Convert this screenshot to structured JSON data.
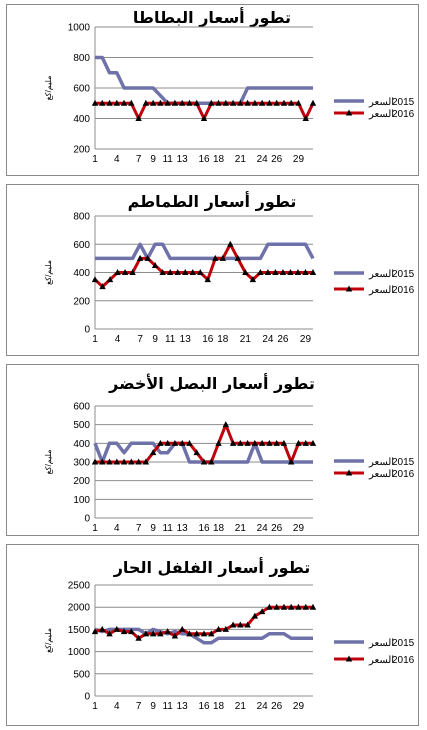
{
  "chart_data": [
    {
      "type": "line",
      "title": "تطور أسعار البطاطا",
      "ylabel": "مليم/كغ",
      "ylim": [
        200,
        1000
      ],
      "yticks": [
        200,
        400,
        600,
        800,
        1000
      ],
      "x": [
        1,
        2,
        3,
        4,
        5,
        6,
        7,
        8,
        9,
        10,
        11,
        12,
        13,
        14,
        15,
        16,
        17,
        18,
        19,
        20,
        21,
        22,
        23,
        24,
        25,
        26,
        27,
        28,
        29,
        30,
        31
      ],
      "xticks": [
        1,
        4,
        7,
        9,
        11,
        13,
        16,
        18,
        21,
        24,
        26,
        29
      ],
      "series": [
        {
          "name": "السعر 2015",
          "year": "2015",
          "label": "السعر",
          "color": "#6f72a8",
          "marker": "none",
          "values": [
            800,
            800,
            700,
            700,
            600,
            600,
            600,
            600,
            600,
            550,
            500,
            500,
            500,
            500,
            500,
            500,
            500,
            500,
            500,
            500,
            500,
            600,
            600,
            600,
            600,
            600,
            600,
            600,
            600,
            600,
            600
          ]
        },
        {
          "name": "السعر 2016",
          "year": "2016",
          "label": "السعر",
          "color": "#c0000a",
          "marker": "triangle",
          "values": [
            500,
            500,
            500,
            500,
            500,
            500,
            400,
            500,
            500,
            500,
            500,
            500,
            500,
            500,
            500,
            400,
            500,
            500,
            500,
            500,
            500,
            500,
            500,
            500,
            500,
            500,
            500,
            500,
            500,
            400,
            500
          ]
        }
      ],
      "grid": "horizontal",
      "legend": "right"
    },
    {
      "type": "line",
      "title": "تطور أسعار الطماطم",
      "ylabel": "مليم/كغ",
      "ylim": [
        0,
        800
      ],
      "yticks": [
        0,
        200,
        400,
        600,
        800
      ],
      "x": [
        1,
        2,
        3,
        4,
        5,
        6,
        7,
        8,
        9,
        10,
        11,
        12,
        13,
        14,
        15,
        16,
        17,
        18,
        19,
        20,
        21,
        22,
        23,
        24,
        25,
        26,
        27,
        28,
        29,
        30
      ],
      "xticks": [
        1,
        4,
        7,
        9,
        11,
        13,
        16,
        18,
        21,
        24,
        26,
        29
      ],
      "series": [
        {
          "name": "السعر 2015",
          "year": "2015",
          "label": "السعر",
          "color": "#6f72a8",
          "marker": "none",
          "values": [
            500,
            500,
            500,
            500,
            500,
            500,
            600,
            500,
            600,
            600,
            500,
            500,
            500,
            500,
            500,
            500,
            500,
            500,
            500,
            500,
            500,
            500,
            500,
            600,
            600,
            600,
            600,
            600,
            600,
            500
          ]
        },
        {
          "name": "السعر 2016",
          "year": "2016",
          "label": "السعر",
          "color": "#c0000a",
          "marker": "triangle",
          "values": [
            350,
            300,
            350,
            400,
            400,
            400,
            500,
            500,
            450,
            400,
            400,
            400,
            400,
            400,
            400,
            350,
            500,
            500,
            600,
            500,
            400,
            350,
            400,
            400,
            400,
            400,
            400,
            400,
            400,
            400
          ]
        }
      ],
      "grid": "horizontal",
      "legend": "right"
    },
    {
      "type": "line",
      "title": "تطور أسعار البصل الأخضر",
      "ylabel": "مليم/كغ",
      "ylim": [
        0,
        600
      ],
      "yticks": [
        0,
        100,
        200,
        300,
        400,
        500,
        600
      ],
      "x": [
        1,
        2,
        3,
        4,
        5,
        6,
        7,
        8,
        9,
        10,
        11,
        12,
        13,
        14,
        15,
        16,
        17,
        18,
        19,
        20,
        21,
        22,
        23,
        24,
        25,
        26,
        27,
        28,
        29,
        30,
        31
      ],
      "xticks": [
        1,
        4,
        7,
        9,
        11,
        13,
        16,
        18,
        21,
        24,
        26,
        29
      ],
      "series": [
        {
          "name": "السعر 2015",
          "year": "2015",
          "label": "السعر",
          "color": "#6f72a8",
          "marker": "none",
          "values": [
            400,
            300,
            400,
            400,
            350,
            400,
            400,
            400,
            400,
            350,
            350,
            400,
            400,
            300,
            300,
            300,
            300,
            300,
            300,
            300,
            300,
            300,
            400,
            300,
            300,
            300,
            300,
            300,
            300,
            300,
            300
          ]
        },
        {
          "name": "السعر 2016",
          "year": "2016",
          "label": "السعر",
          "color": "#c0000a",
          "marker": "triangle",
          "values": [
            300,
            300,
            300,
            300,
            300,
            300,
            300,
            300,
            350,
            400,
            400,
            400,
            400,
            400,
            350,
            300,
            300,
            400,
            500,
            400,
            400,
            400,
            400,
            400,
            400,
            400,
            400,
            300,
            400,
            400,
            400
          ]
        }
      ],
      "grid": "horizontal",
      "legend": "right"
    },
    {
      "type": "line",
      "title": "تطور أسعار الفلفل الحار",
      "ylabel": "مليم/كغ",
      "ylim": [
        0,
        2500
      ],
      "yticks": [
        0,
        500,
        1000,
        1500,
        2000,
        2500
      ],
      "x": [
        1,
        2,
        3,
        4,
        5,
        6,
        7,
        8,
        9,
        10,
        11,
        12,
        13,
        14,
        15,
        16,
        17,
        18,
        19,
        20,
        21,
        22,
        23,
        24,
        25,
        26,
        27,
        28,
        29,
        30,
        31
      ],
      "xticks": [
        1,
        4,
        7,
        9,
        11,
        13,
        16,
        18,
        21,
        24,
        26,
        29
      ],
      "series": [
        {
          "name": "السعر 2015",
          "year": "2015",
          "label": "السعر",
          "color": "#6f72a8",
          "marker": "none",
          "values": [
            1500,
            1450,
            1500,
            1500,
            1500,
            1500,
            1500,
            1400,
            1500,
            1450,
            1400,
            1450,
            1400,
            1400,
            1300,
            1200,
            1200,
            1300,
            1300,
            1300,
            1300,
            1300,
            1300,
            1300,
            1400,
            1400,
            1400,
            1300,
            1300,
            1300,
            1300
          ]
        },
        {
          "name": "السعر 2016",
          "year": "2016",
          "label": "السعر",
          "color": "#c0000a",
          "marker": "triangle",
          "values": [
            1450,
            1500,
            1400,
            1500,
            1450,
            1450,
            1300,
            1400,
            1400,
            1400,
            1450,
            1350,
            1500,
            1400,
            1400,
            1400,
            1400,
            1500,
            1500,
            1600,
            1600,
            1600,
            1800,
            1900,
            2000,
            2000,
            2000,
            2000,
            2000,
            2000,
            2000
          ]
        }
      ],
      "grid": "horizontal",
      "legend": "right"
    }
  ]
}
